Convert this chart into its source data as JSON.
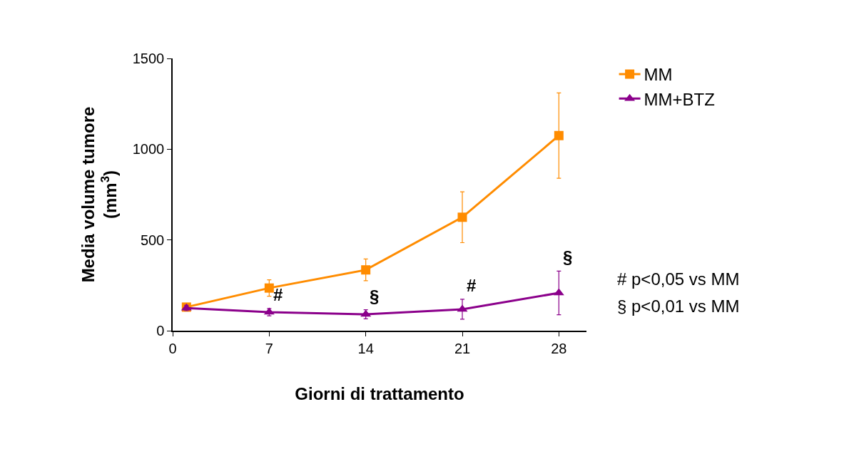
{
  "chart_data": {
    "type": "line",
    "xlabel": "Giorni di trattamento",
    "ylabel": "Media volume tumore\n(mm$^{3}$)",
    "xlim": [
      0,
      30
    ],
    "xticks": [
      0,
      7,
      14,
      21,
      28
    ],
    "ylim": [
      0,
      1500
    ],
    "yticks": [
      0,
      500,
      1000,
      1500
    ],
    "legend": "top right",
    "line_style": "solid",
    "series": [
      {
        "name": "MM",
        "color": "#ff8c00",
        "marker": "square",
        "x": [
          1,
          7,
          14,
          21,
          28
        ],
        "values": [
          130,
          235,
          335,
          625,
          1075
        ],
        "errors": [
          20,
          45,
          60,
          140,
          235
        ]
      },
      {
        "name": "MM+BTZ",
        "color": "#8b008b",
        "marker": "triangle",
        "x": [
          1,
          7,
          14,
          21,
          28
        ],
        "values": [
          125,
          102,
          90,
          118,
          208
        ],
        "errors": [
          15,
          20,
          25,
          55,
          120
        ]
      }
    ],
    "annotations": [
      {
        "text": "#",
        "x": 7,
        "y": 122
      },
      {
        "text": "§",
        "x": 14,
        "y": 115
      },
      {
        "text": "#",
        "x": 21,
        "y": 173
      },
      {
        "text": "§",
        "x": 28,
        "y": 328
      },
      "# p<0,05 vs MM",
      "§ p<0,01 vs MM"
    ]
  }
}
